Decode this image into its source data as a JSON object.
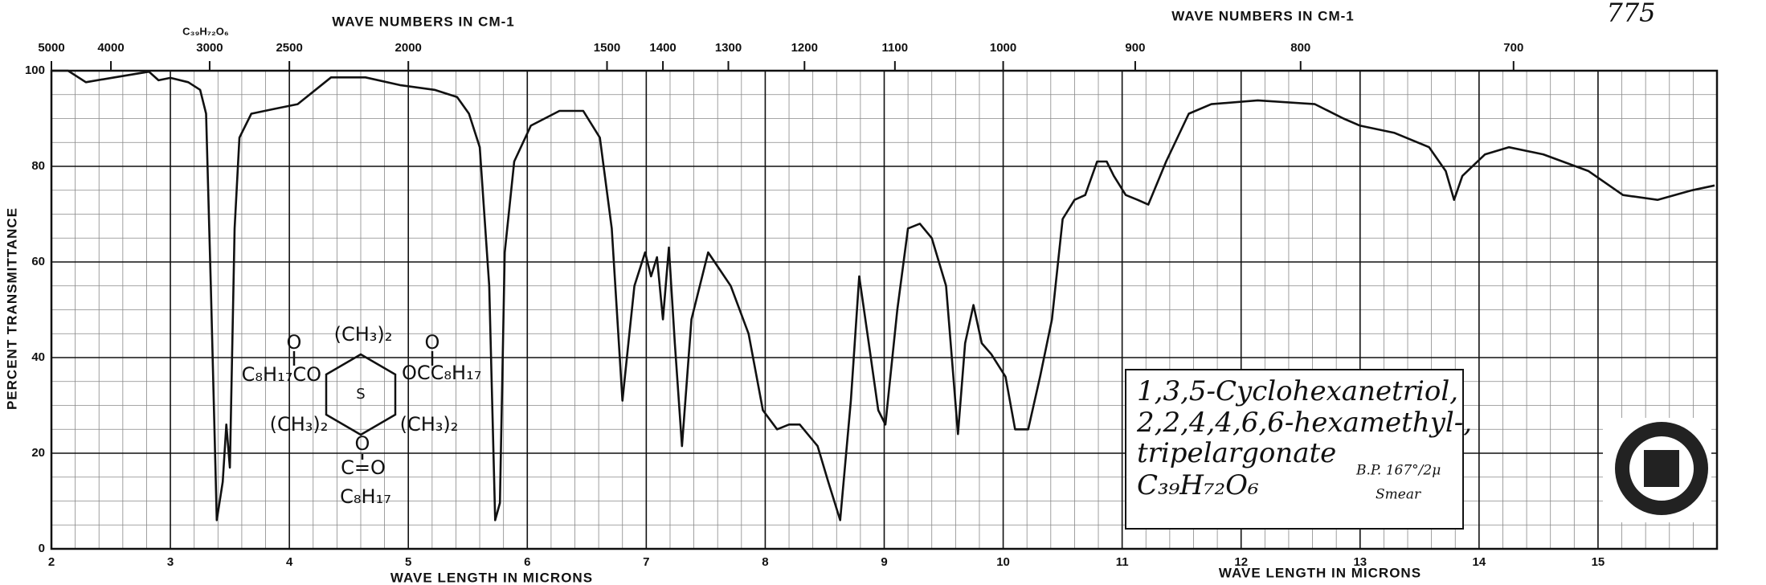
{
  "chart_data": {
    "type": "line",
    "page_number": "775",
    "formula_header": "C₃₉H₇₂O₆",
    "top_axis_label": "WAVE NUMBERS IN CM-1",
    "top_axis_label_right": "WAVE NUMBERS IN CM-1",
    "x_label": "WAVE LENGTH IN MICRONS",
    "x_label_right": "WAVE LENGTH IN MICRONS",
    "y_label": "PERCENT TRANSMITTANCE",
    "annotation": [
      "1,3,5-Cyclohexanetriol,",
      "2,2,4,4,6,6-hexamethyl-,",
      "tripelargonate",
      "C₃₉H₇₂O₆"
    ],
    "annotation_note": [
      "B.P. 167°/2μ",
      "Smear"
    ],
    "structure_labels": [
      "O",
      "(CH₃)₂",
      "O",
      "C₈H₁₇CO",
      "OCC₈H₁₇",
      "(CH₃)₂",
      "(CH₃)₂",
      "S",
      "O",
      "C=O",
      "C₈H₁₇"
    ],
    "color": "#111111",
    "grid": true,
    "xlim": [
      2,
      16
    ],
    "ylim": [
      0,
      100
    ],
    "xticks": [
      2,
      3,
      4,
      5,
      6,
      7,
      8,
      9,
      10,
      11,
      12,
      13,
      14,
      15
    ],
    "yticks": [
      0,
      20,
      40,
      60,
      80,
      100
    ],
    "x2ticks": [
      {
        "value": 2,
        "label": "5000"
      },
      {
        "value": 2.5,
        "label": "4000"
      },
      {
        "value": 3.33,
        "label": "3000"
      },
      {
        "value": 4,
        "label": "2500"
      },
      {
        "value": 5,
        "label": "2000"
      },
      {
        "value": 6.67,
        "label": "1500"
      },
      {
        "value": 7.14,
        "label": "1400"
      },
      {
        "value": 7.69,
        "label": "1300"
      },
      {
        "value": 8.33,
        "label": "1200"
      },
      {
        "value": 9.09,
        "label": "1100"
      },
      {
        "value": 10,
        "label": "1000"
      },
      {
        "value": 11.11,
        "label": "900"
      },
      {
        "value": 12.5,
        "label": "800"
      },
      {
        "value": 14.29,
        "label": "700"
      }
    ],
    "x": [
      2,
      2.14,
      2.29,
      2.53,
      2.82,
      2.9,
      3.0,
      3.15,
      3.25,
      3.3,
      3.34,
      3.39,
      3.44,
      3.47,
      3.5,
      3.54,
      3.58,
      3.68,
      3.87,
      4.07,
      4.35,
      4.64,
      4.93,
      5.22,
      5.41,
      5.51,
      5.6,
      5.68,
      5.73,
      5.77,
      5.81,
      5.89,
      6.03,
      6.27,
      6.47,
      6.61,
      6.71,
      6.8,
      6.85,
      6.9,
      6.99,
      7.04,
      7.09,
      7.14,
      7.19,
      7.24,
      7.3,
      7.38,
      7.52,
      7.71,
      7.86,
      7.98,
      8.1,
      8.2,
      8.29,
      8.44,
      8.53,
      8.63,
      8.72,
      8.79,
      8.87,
      8.95,
      9.01,
      9.11,
      9.2,
      9.3,
      9.4,
      9.52,
      9.62,
      9.68,
      9.75,
      9.82,
      9.9,
      10.02,
      10.1,
      10.21,
      10.31,
      10.41,
      10.5,
      10.6,
      10.69,
      10.79,
      10.87,
      10.93,
      11.03,
      11.13,
      11.22,
      11.37,
      11.56,
      11.75,
      12.14,
      12.62,
      12.86,
      13.0,
      13.29,
      13.58,
      13.72,
      13.79,
      13.86,
      14.05,
      14.25,
      14.54,
      14.92,
      15.21,
      15.5,
      15.79,
      15.98
    ],
    "values": [
      100,
      100,
      97.6,
      98.6,
      99.8,
      98,
      98.5,
      97.6,
      96,
      91,
      55,
      6,
      14,
      26,
      17,
      67,
      86,
      91,
      92,
      93,
      98.6,
      98.6,
      97,
      96,
      94.5,
      91,
      84,
      55,
      6,
      9.6,
      62,
      81,
      88.5,
      91.6,
      91.6,
      86,
      67,
      31,
      43,
      55,
      62,
      57,
      61,
      48,
      63,
      43,
      21.5,
      48,
      62,
      55,
      45,
      29,
      25,
      26,
      26,
      21.5,
      14,
      6,
      31,
      57,
      43,
      29,
      26,
      50,
      67,
      68,
      65,
      55,
      24,
      43,
      51,
      43,
      40.7,
      36,
      25,
      25,
      36,
      48,
      69,
      73,
      74,
      81,
      81,
      78,
      74,
      73,
      72,
      81,
      91,
      93,
      93.8,
      93,
      90,
      88.5,
      87,
      84,
      79,
      73,
      78,
      82.5,
      84,
      82.5,
      79,
      74,
      73,
      75,
      76
    ]
  }
}
